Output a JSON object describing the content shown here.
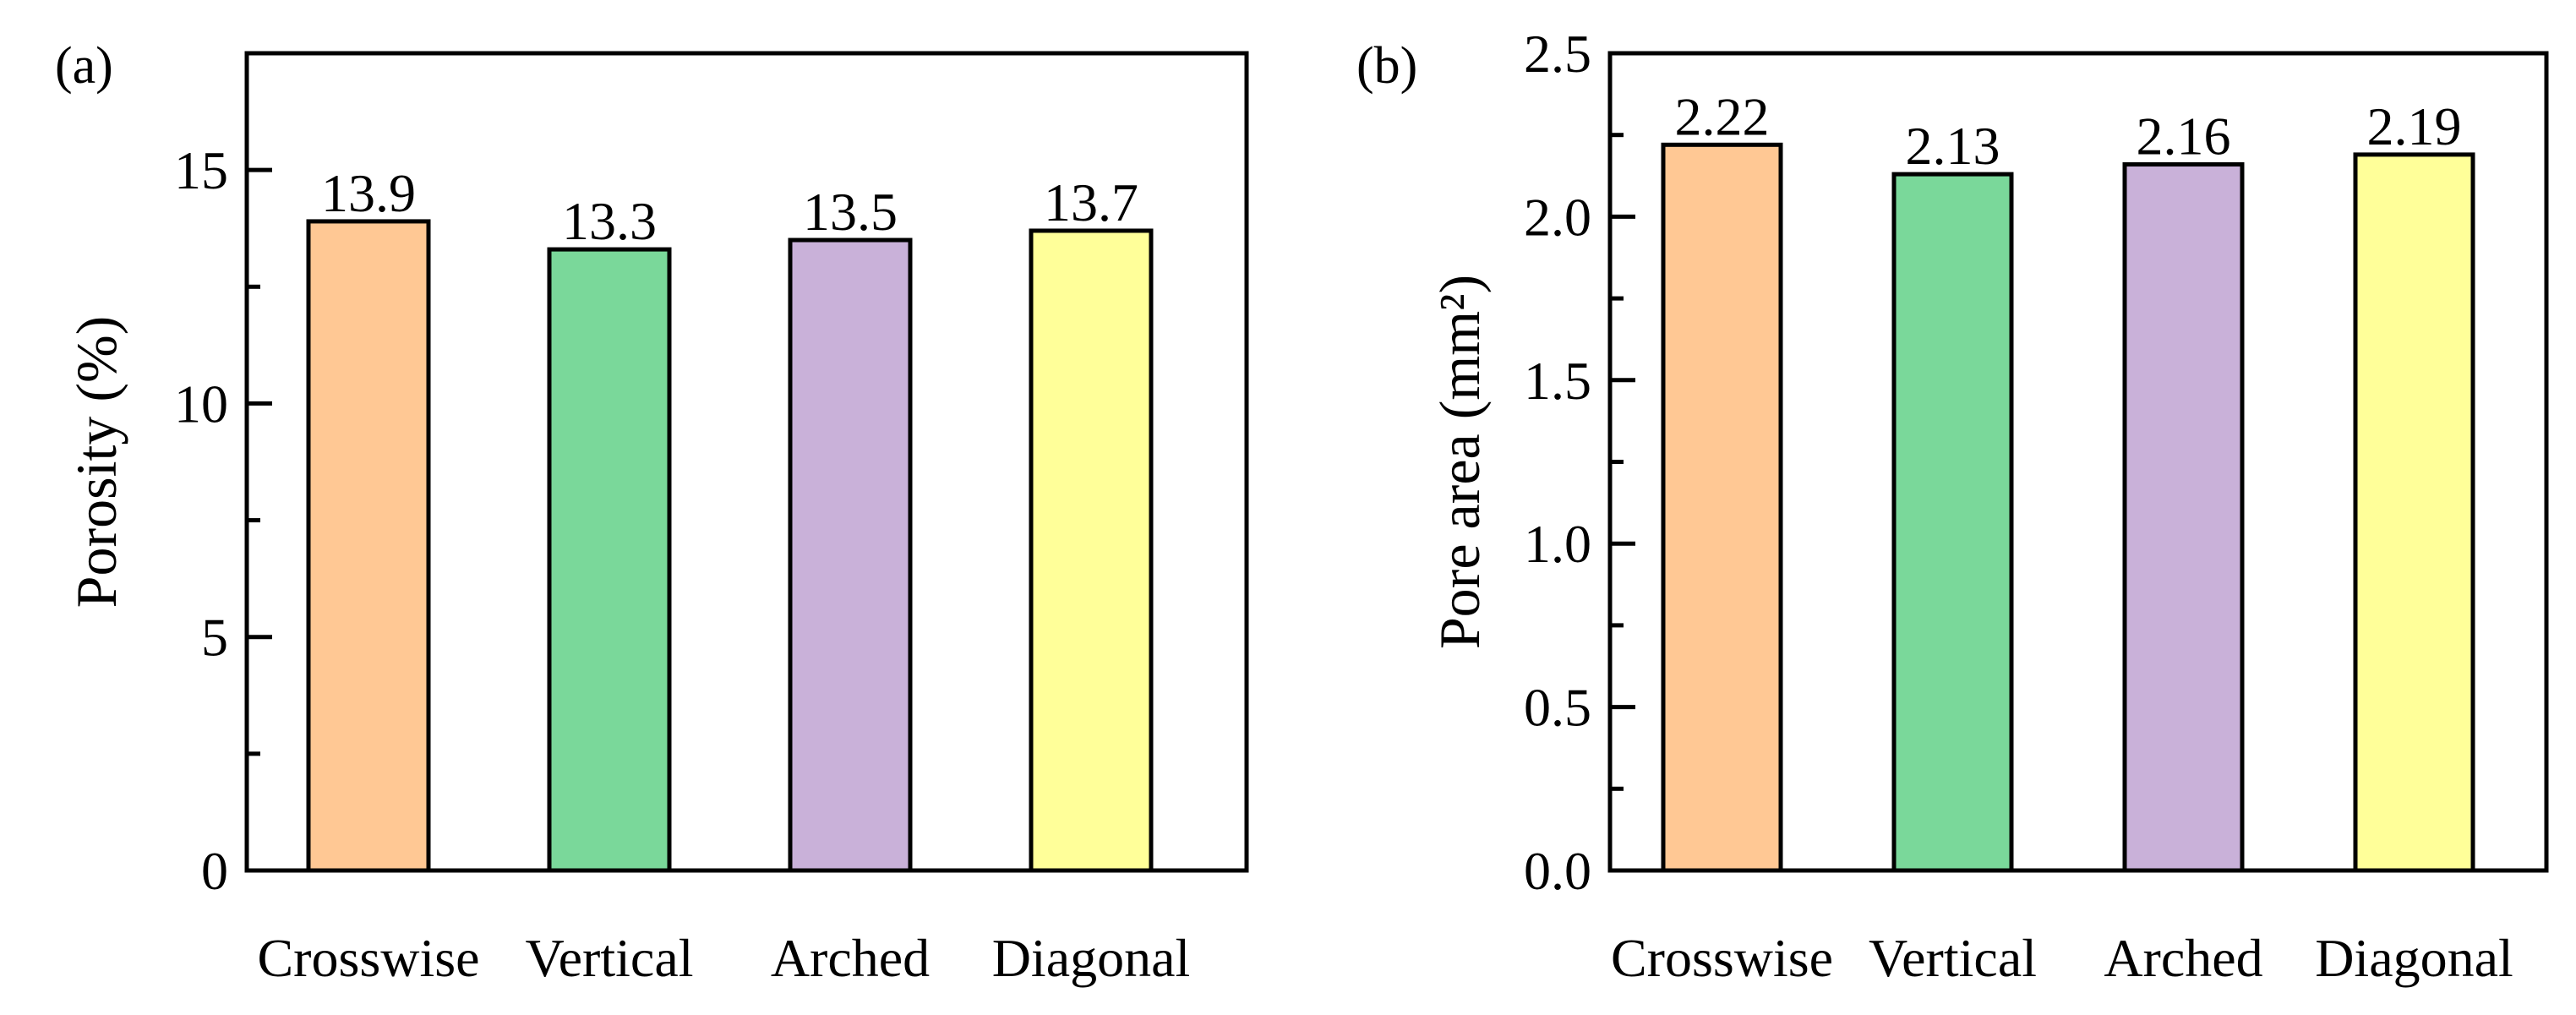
{
  "chart_data": [
    {
      "panel_label": "(a)",
      "type": "bar",
      "categories": [
        "Crosswise",
        "Vertical",
        "Arched",
        "Diagonal"
      ],
      "values": [
        13.9,
        13.3,
        13.5,
        13.7
      ],
      "value_labels": [
        "13.9",
        "13.3",
        "13.5",
        "13.7"
      ],
      "colors": [
        "#FFC894",
        "#7AD89A",
        "#C9B1D9",
        "#FFFF99"
      ],
      "xlabel": "",
      "ylabel": "Porosity (%)",
      "ylim": [
        0,
        17.5
      ],
      "yticks": [
        0,
        5,
        10,
        15
      ],
      "ytick_labels": [
        "0",
        "5",
        "10",
        "15"
      ],
      "yminor": [
        2.5,
        7.5,
        12.5
      ],
      "grid": false
    },
    {
      "panel_label": "(b)",
      "type": "bar",
      "categories": [
        "Crosswise",
        "Vertical",
        "Arched",
        "Diagonal"
      ],
      "values": [
        2.22,
        2.13,
        2.16,
        2.19
      ],
      "value_labels": [
        "2.22",
        "2.13",
        "2.16",
        "2.19"
      ],
      "colors": [
        "#FFC894",
        "#7AD89A",
        "#C9B1D9",
        "#FFFF99"
      ],
      "xlabel": "",
      "ylabel": "Pore area (mm²)",
      "ylim": [
        0,
        2.5
      ],
      "yticks": [
        0,
        0.5,
        1.0,
        1.5,
        2.0,
        2.5
      ],
      "ytick_labels": [
        "0.0",
        "0.5",
        "1.0",
        "1.5",
        "2.0",
        "2.5"
      ],
      "yminor": [
        0.25,
        0.75,
        1.25,
        1.75,
        2.25
      ],
      "grid": false
    }
  ]
}
